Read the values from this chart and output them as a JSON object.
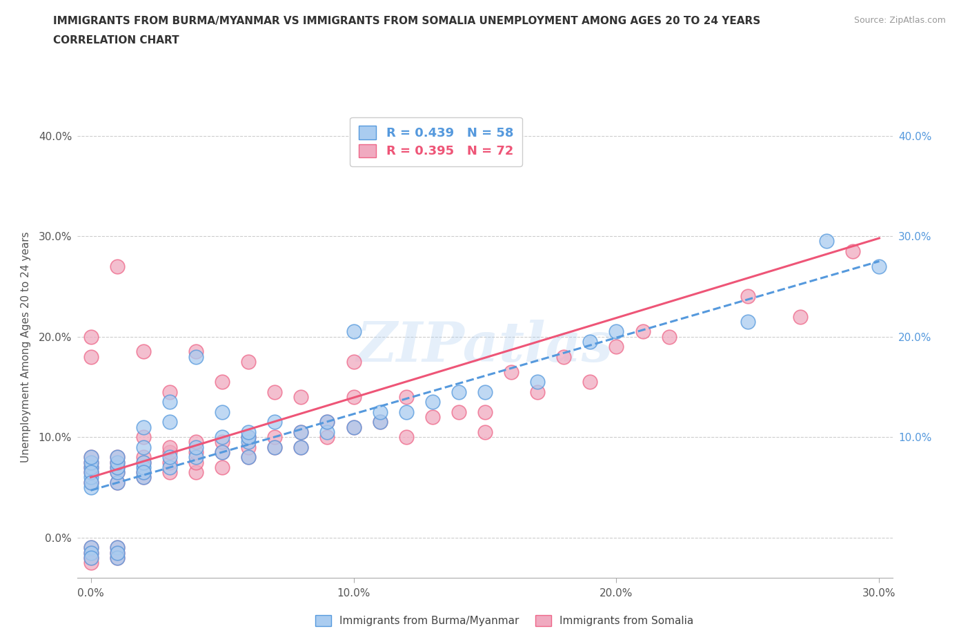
{
  "title_line1": "IMMIGRANTS FROM BURMA/MYANMAR VS IMMIGRANTS FROM SOMALIA UNEMPLOYMENT AMONG AGES 20 TO 24 YEARS",
  "title_line2": "CORRELATION CHART",
  "source": "Source: ZipAtlas.com",
  "ylabel": "Unemployment Among Ages 20 to 24 years",
  "xlim": [
    -0.005,
    0.305
  ],
  "ylim": [
    -0.04,
    0.42
  ],
  "xtick_labels": [
    "0.0%",
    "10.0%",
    "20.0%",
    "30.0%"
  ],
  "xtick_vals": [
    0.0,
    0.1,
    0.2,
    0.3
  ],
  "ytick_labels": [
    "0.0%",
    "10.0%",
    "20.0%",
    "30.0%",
    "40.0%"
  ],
  "ytick_vals": [
    0.0,
    0.1,
    0.2,
    0.3,
    0.4
  ],
  "right_ytick_labels": [
    "40.0%",
    "30.0%",
    "20.0%",
    "10.0%"
  ],
  "right_ytick_vals": [
    0.4,
    0.3,
    0.2,
    0.1
  ],
  "burma_R": 0.439,
  "burma_N": 58,
  "somalia_R": 0.395,
  "somalia_N": 72,
  "burma_color": "#aaccf0",
  "somalia_color": "#f0aac0",
  "burma_edge_color": "#5599dd",
  "somalia_edge_color": "#ee6688",
  "burma_line_color": "#5599dd",
  "somalia_line_color": "#ee5577",
  "legend_label_burma": "Immigrants from Burma/Myanmar",
  "legend_label_somalia": "Immigrants from Somalia",
  "background_color": "#ffffff",
  "watermark_text": "ZIPatlas",
  "burma_line_start_y": 0.047,
  "burma_line_end_y": 0.275,
  "somalia_line_start_y": 0.06,
  "somalia_line_end_y": 0.298,
  "burma_scatter_x": [
    0.0,
    0.0,
    0.0,
    0.0,
    0.0,
    0.0,
    0.0,
    0.0,
    0.0,
    0.0,
    0.01,
    0.01,
    0.01,
    0.01,
    0.01,
    0.01,
    0.01,
    0.01,
    0.02,
    0.02,
    0.02,
    0.02,
    0.02,
    0.02,
    0.03,
    0.03,
    0.03,
    0.03,
    0.04,
    0.04,
    0.04,
    0.05,
    0.05,
    0.05,
    0.06,
    0.06,
    0.06,
    0.06,
    0.07,
    0.07,
    0.08,
    0.08,
    0.09,
    0.09,
    0.1,
    0.1,
    0.11,
    0.11,
    0.12,
    0.13,
    0.14,
    0.15,
    0.17,
    0.19,
    0.2,
    0.25,
    0.28,
    0.3
  ],
  "burma_scatter_y": [
    0.05,
    0.06,
    0.07,
    0.075,
    0.08,
    -0.01,
    -0.015,
    -0.02,
    0.065,
    0.055,
    0.055,
    0.065,
    0.07,
    0.075,
    0.08,
    -0.01,
    -0.02,
    -0.015,
    0.06,
    0.07,
    0.075,
    0.09,
    0.11,
    0.065,
    0.07,
    0.08,
    0.115,
    0.135,
    0.08,
    0.09,
    0.18,
    0.085,
    0.1,
    0.125,
    0.08,
    0.095,
    0.1,
    0.105,
    0.09,
    0.115,
    0.09,
    0.105,
    0.105,
    0.115,
    0.11,
    0.205,
    0.115,
    0.125,
    0.125,
    0.135,
    0.145,
    0.145,
    0.155,
    0.195,
    0.205,
    0.215,
    0.295,
    0.27
  ],
  "somalia_scatter_x": [
    0.0,
    0.0,
    0.0,
    0.0,
    0.0,
    0.0,
    0.0,
    0.0,
    0.0,
    0.0,
    0.0,
    0.01,
    0.01,
    0.01,
    0.01,
    0.01,
    0.01,
    0.01,
    0.01,
    0.01,
    0.02,
    0.02,
    0.02,
    0.02,
    0.02,
    0.02,
    0.03,
    0.03,
    0.03,
    0.03,
    0.03,
    0.04,
    0.04,
    0.04,
    0.04,
    0.04,
    0.05,
    0.05,
    0.05,
    0.05,
    0.06,
    0.06,
    0.06,
    0.06,
    0.07,
    0.07,
    0.07,
    0.08,
    0.08,
    0.08,
    0.09,
    0.09,
    0.1,
    0.1,
    0.1,
    0.11,
    0.12,
    0.12,
    0.13,
    0.14,
    0.15,
    0.15,
    0.16,
    0.17,
    0.18,
    0.19,
    0.2,
    0.21,
    0.22,
    0.25,
    0.27,
    0.29
  ],
  "somalia_scatter_y": [
    0.055,
    0.065,
    0.07,
    0.075,
    0.08,
    -0.01,
    -0.015,
    -0.02,
    -0.025,
    0.2,
    0.18,
    0.055,
    0.065,
    0.07,
    0.075,
    0.08,
    -0.01,
    -0.015,
    -0.02,
    0.27,
    0.06,
    0.065,
    0.075,
    0.08,
    0.1,
    0.185,
    0.065,
    0.075,
    0.085,
    0.09,
    0.145,
    0.065,
    0.075,
    0.085,
    0.095,
    0.185,
    0.07,
    0.085,
    0.095,
    0.155,
    0.08,
    0.09,
    0.1,
    0.175,
    0.09,
    0.1,
    0.145,
    0.09,
    0.105,
    0.14,
    0.1,
    0.115,
    0.11,
    0.14,
    0.175,
    0.115,
    0.1,
    0.14,
    0.12,
    0.125,
    0.105,
    0.125,
    0.165,
    0.145,
    0.18,
    0.155,
    0.19,
    0.205,
    0.2,
    0.24,
    0.22,
    0.285
  ]
}
